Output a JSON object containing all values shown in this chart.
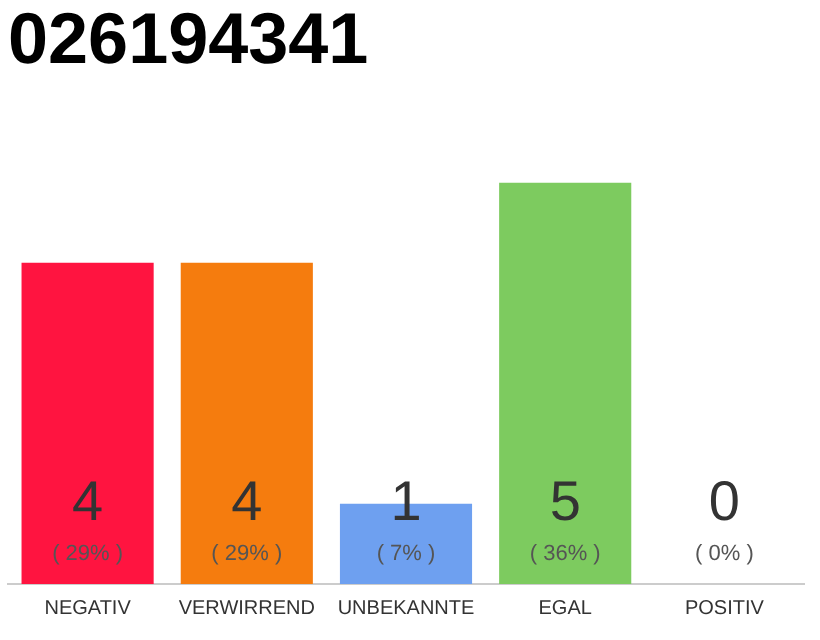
{
  "chart_data": {
    "type": "bar",
    "title": "026194341",
    "categories": [
      "NEGATIV",
      "VERWIRREND",
      "UNBEKANNTE",
      "EGAL",
      "POSITIV"
    ],
    "values": [
      4,
      4,
      1,
      5,
      0
    ],
    "colors": [
      "#ff1440",
      "#f57c0e",
      "#6ea0f0",
      "#7dcb5f",
      "#e0e0e0"
    ],
    "value_labels": [
      "4\n( 29% )",
      "4\n( 29% )",
      "1\n( 7% )",
      "5\n( 36% )",
      "0\n( 0% )"
    ],
    "grid": false,
    "legend": false
  }
}
